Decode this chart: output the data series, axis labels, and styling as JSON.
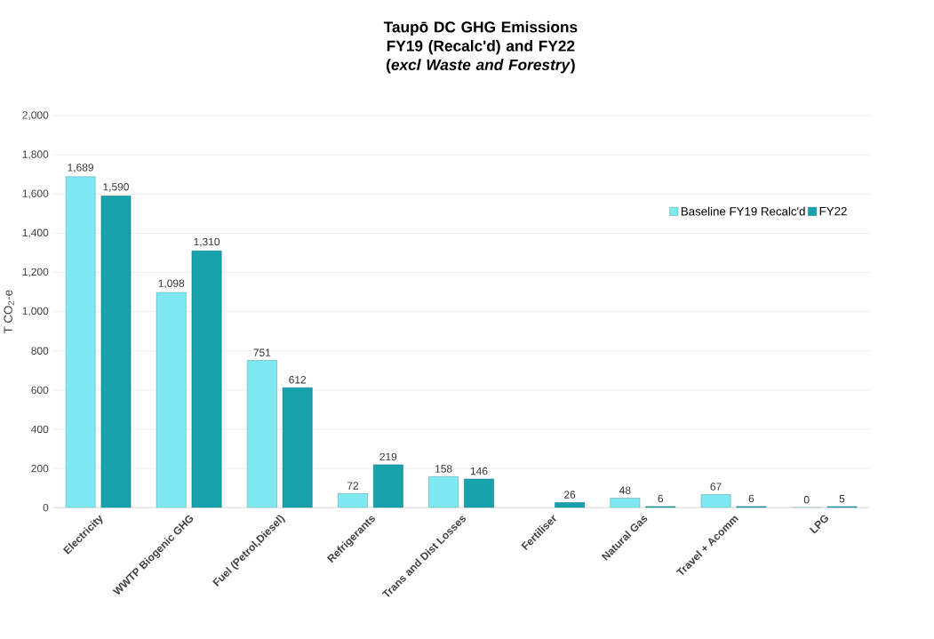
{
  "chart_data": {
    "type": "bar",
    "title": "Taupō DC GHG Emissions FY19 (Recalc'd) and FY22",
    "subtitle": "(*excl Waste and Forestry*)",
    "ylabel": "T CO$_{2}$-e",
    "categories": [
      "Electricity",
      "WWTP Biogenic GHG",
      "Fuel (Petrol,Diesel)",
      "Refrigerants",
      "Trans and Dist Losses",
      "Fertiliser",
      "Natural Gas",
      "Travel + Acomm",
      "LPG"
    ],
    "series": [
      {
        "name": "Baseline FY19 Recalc'd",
        "color": "#7ee9f0",
        "values": [
          1689,
          1098,
          751,
          72,
          158,
          null,
          48,
          67,
          0
        ],
        "value_labels": [
          "1,689",
          "1,098",
          "751",
          "72",
          "158",
          null,
          "48",
          "67",
          "0"
        ]
      },
      {
        "name": "FY22",
        "color": "#17a2ac",
        "values": [
          1590,
          1310,
          612,
          219,
          146,
          26,
          6,
          6,
          5
        ],
        "value_labels": [
          "1,590",
          "1,310",
          "612",
          "219",
          "146",
          "26",
          "6",
          "6",
          "5"
        ]
      }
    ],
    "ylim": [
      0,
      2000
    ],
    "yticks": [
      0,
      200,
      400,
      600,
      800,
      {
        "value": 1000,
        "label": "1,000"
      },
      {
        "value": 1200,
        "label": "1,200"
      },
      {
        "value": 1400,
        "label": "1,400"
      },
      {
        "value": 1600,
        "label": "1,600"
      },
      {
        "value": 1800,
        "label": "1,800"
      },
      {
        "value": 2000,
        "label": "2,000"
      }
    ],
    "grid": "y",
    "legend": "top right"
  }
}
